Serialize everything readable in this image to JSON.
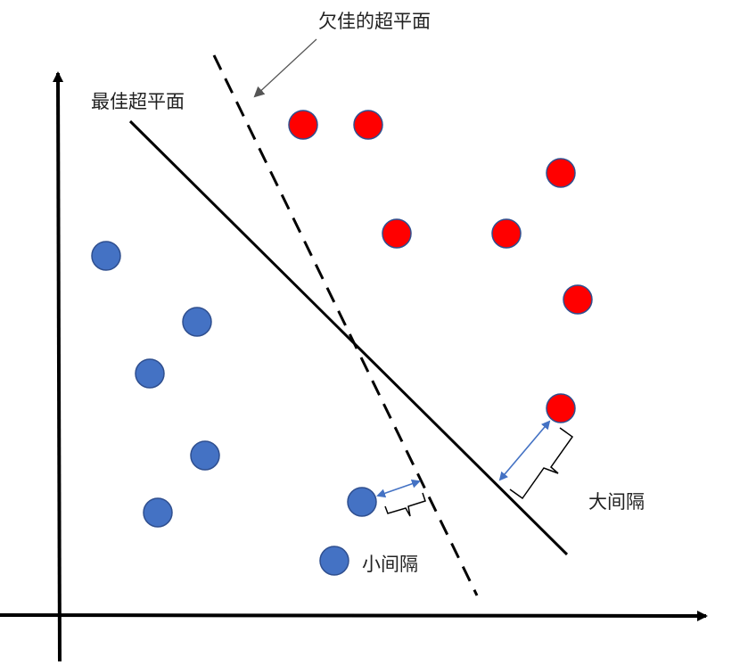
{
  "labels": {
    "poor_hyperplane": "欠佳的超平面",
    "best_hyperplane": "最佳超平面",
    "large_margin": "大间隔",
    "small_margin": "小间隔"
  },
  "colors": {
    "red_class": "#ff0000",
    "blue_class": "#4472c4",
    "point_stroke": "#2f4f8f",
    "line": "#000000",
    "margin_arrow": "#4472c4",
    "pointer": "#555555"
  },
  "points": {
    "red_count": 7,
    "blue_count": 7
  }
}
